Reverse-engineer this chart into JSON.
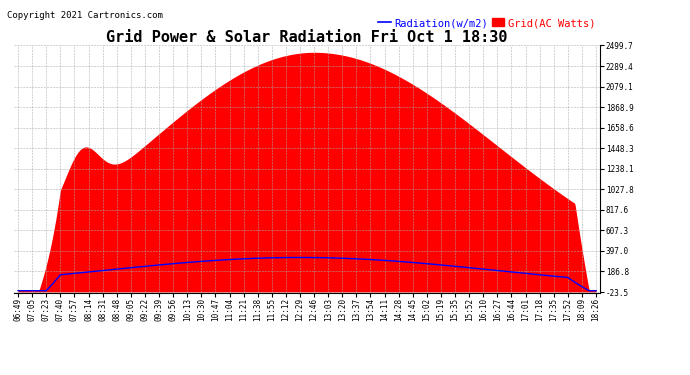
{
  "title": "Grid Power & Solar Radiation Fri Oct 1 18:30",
  "copyright": "Copyright 2021 Cartronics.com",
  "legend_radiation": "Radiation(w/m2)",
  "legend_grid": "Grid(AC Watts)",
  "yticks": [
    2499.7,
    2289.4,
    2079.1,
    1868.9,
    1658.6,
    1448.3,
    1238.1,
    1027.8,
    817.6,
    607.3,
    397.0,
    186.8,
    -23.5
  ],
  "ymin": -23.5,
  "ymax": 2499.7,
  "xtick_labels": [
    "06:49",
    "07:05",
    "07:23",
    "07:40",
    "07:57",
    "08:14",
    "08:31",
    "08:48",
    "09:05",
    "09:22",
    "09:39",
    "09:56",
    "10:13",
    "10:30",
    "10:47",
    "11:04",
    "11:21",
    "11:38",
    "11:55",
    "12:12",
    "12:29",
    "12:46",
    "13:03",
    "13:20",
    "13:37",
    "13:54",
    "14:11",
    "14:28",
    "14:45",
    "15:02",
    "15:19",
    "15:35",
    "15:52",
    "16:10",
    "16:27",
    "16:44",
    "17:01",
    "17:18",
    "17:35",
    "17:52",
    "18:09",
    "18:26"
  ],
  "background_color": "#ffffff",
  "grid_color": "#aaaaaa",
  "red_color": "#ff0000",
  "blue_color": "#0000ff",
  "title_fontsize": 11,
  "copyright_fontsize": 6.5,
  "legend_fontsize": 7.5,
  "tick_fontsize": 5.5
}
